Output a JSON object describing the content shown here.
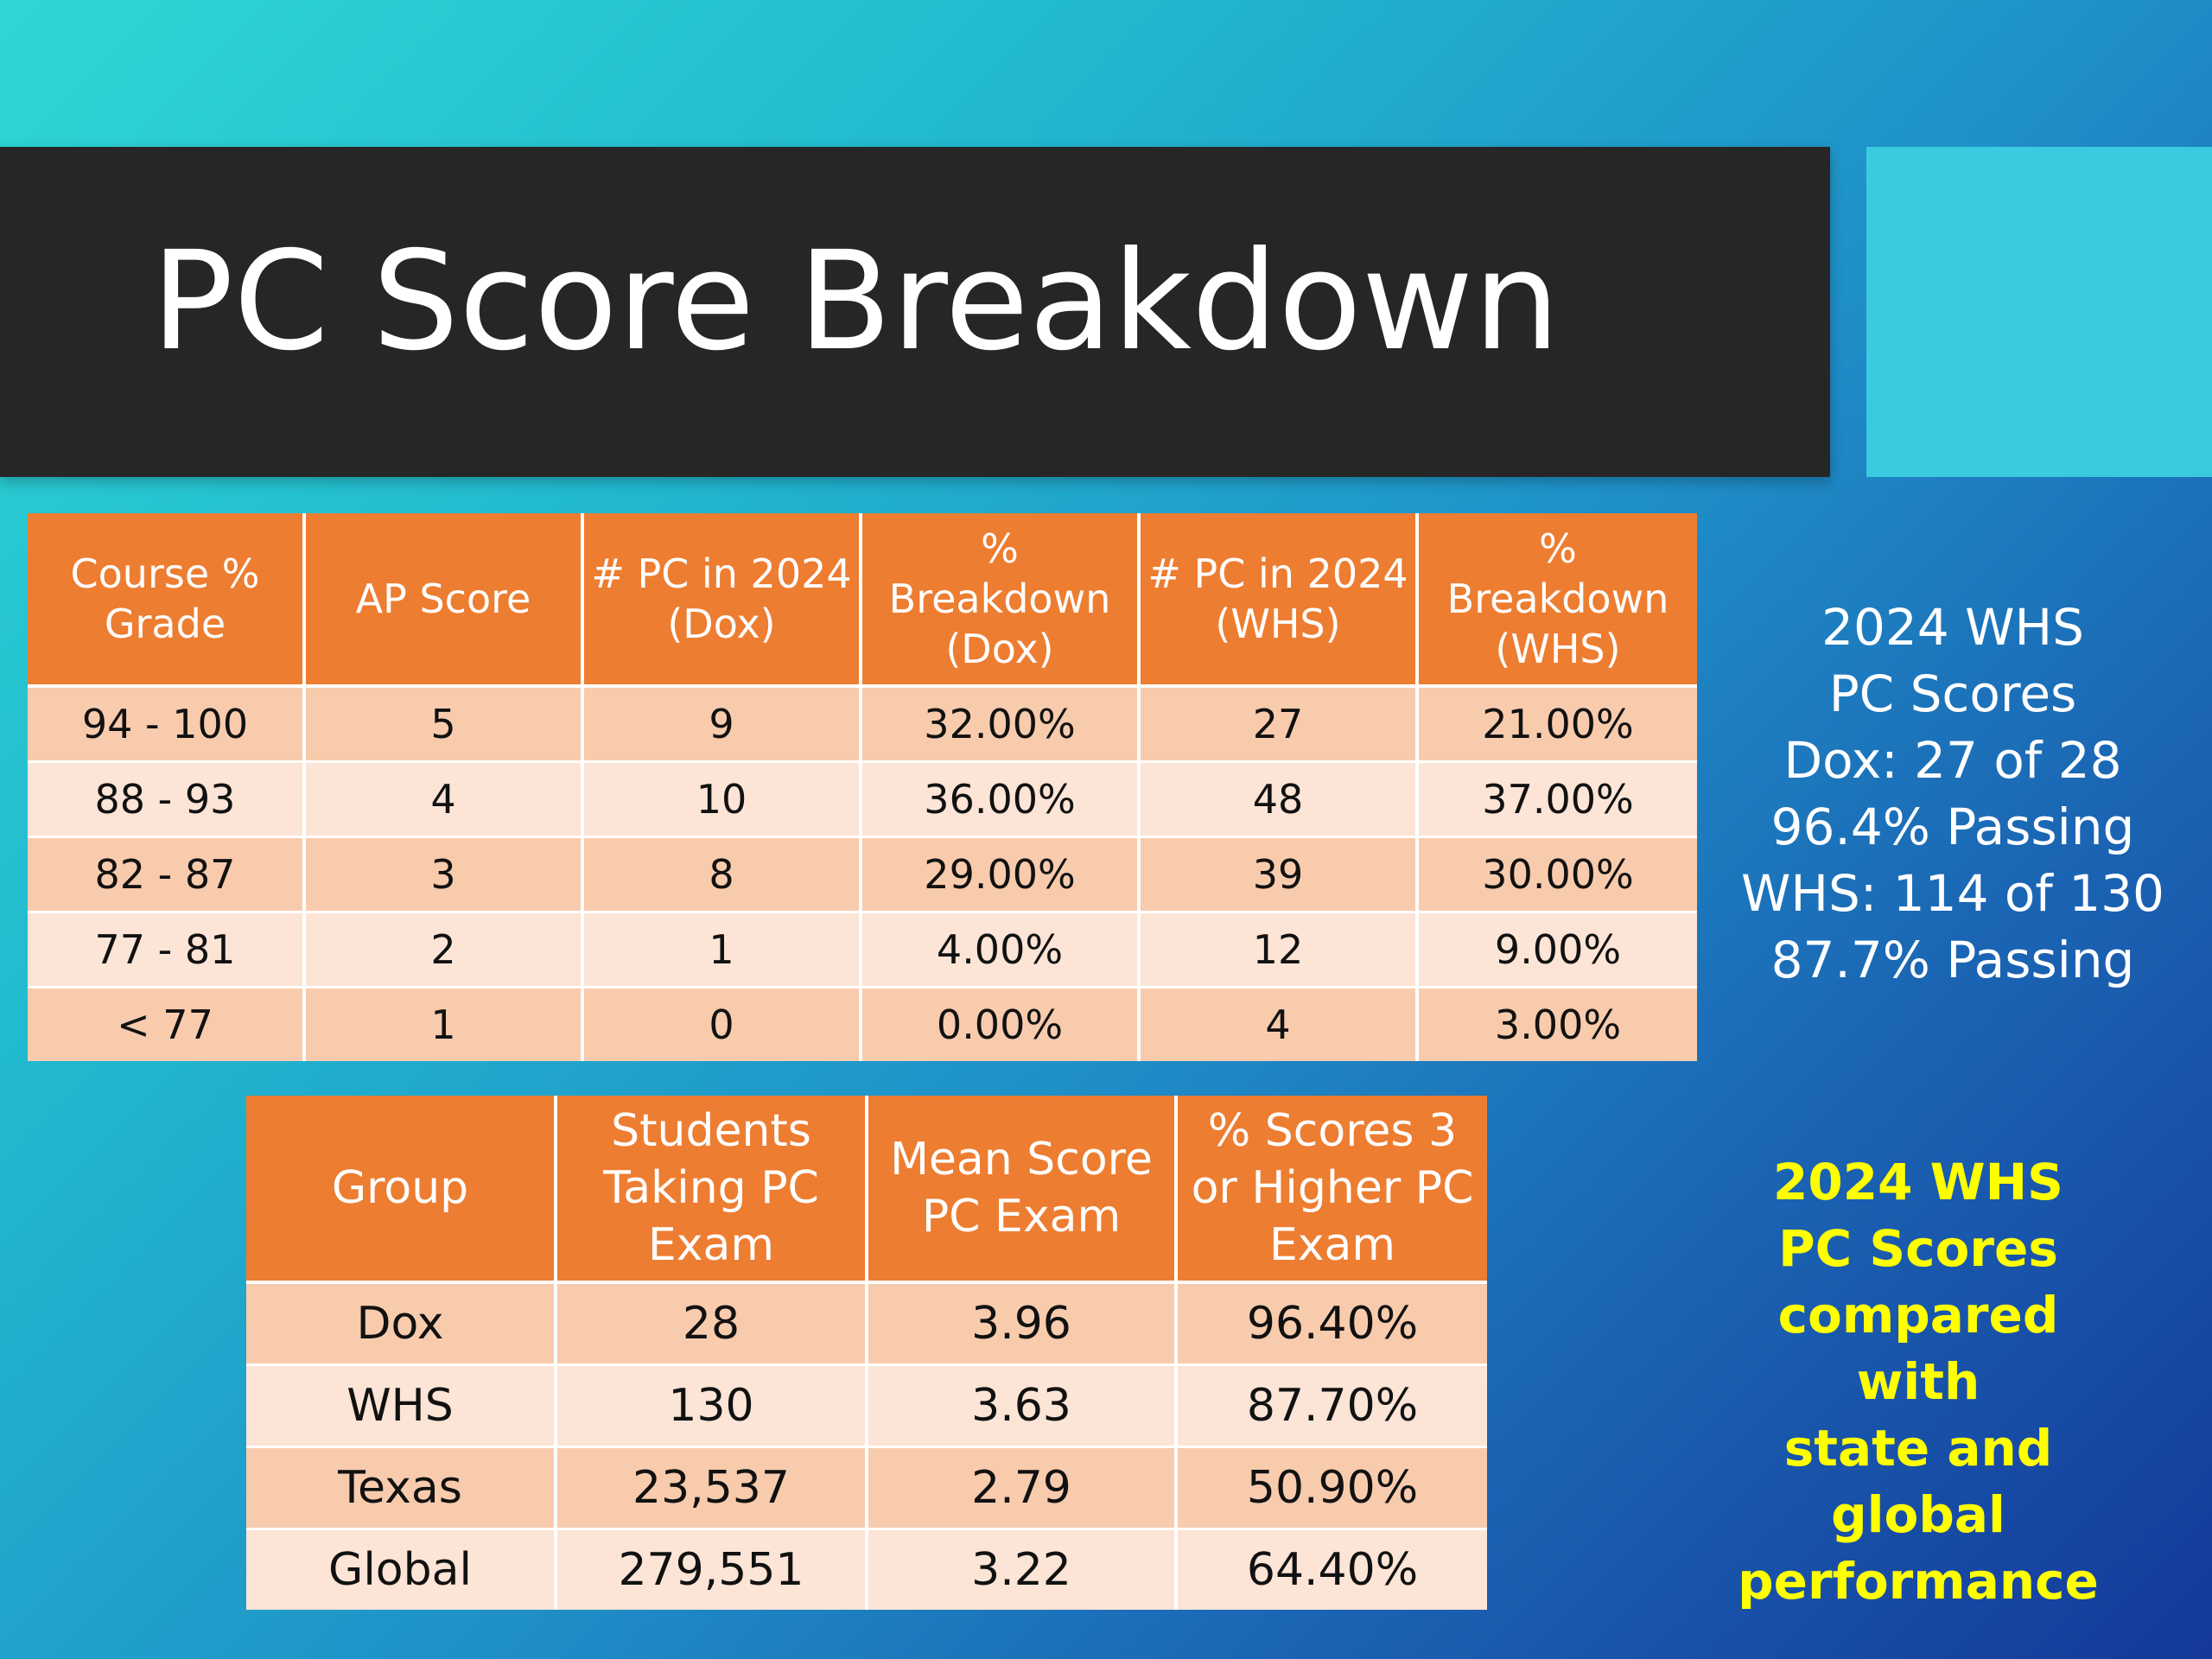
{
  "slide": {
    "title": "PC Score Breakdown"
  },
  "table1": {
    "headers": [
      "Course % Grade",
      "AP Score",
      "# PC in 2024 (Dox)",
      "% Breakdown (Dox)",
      "# PC in 2024 (WHS)",
      "% Breakdown (WHS)"
    ],
    "rows": [
      [
        "94 - 100",
        "5",
        "9",
        "32.00%",
        "27",
        "21.00%"
      ],
      [
        "88 - 93",
        "4",
        "10",
        "36.00%",
        "48",
        "37.00%"
      ],
      [
        "82 - 87",
        "3",
        "8",
        "29.00%",
        "39",
        "30.00%"
      ],
      [
        "77 - 81",
        "2",
        "1",
        "4.00%",
        "12",
        "9.00%"
      ],
      [
        "< 77",
        "1",
        "0",
        "0.00%",
        "4",
        "3.00%"
      ]
    ]
  },
  "table2": {
    "headers": [
      "Group",
      "Students Taking PC Exam",
      "Mean Score PC Exam",
      "% Scores 3 or Higher PC Exam"
    ],
    "rows": [
      [
        "Dox",
        "28",
        "3.96",
        "96.40%"
      ],
      [
        "WHS",
        "130",
        "3.63",
        "87.70%"
      ],
      [
        "Texas",
        "23,537",
        "2.79",
        "50.90%"
      ],
      [
        "Global",
        "279,551",
        "3.22",
        "64.40%"
      ]
    ]
  },
  "summary": {
    "lines": [
      "2024 WHS",
      "PC Scores",
      "Dox: 27 of 28",
      "96.4% Passing",
      "WHS: 114 of 130",
      "87.7% Passing"
    ]
  },
  "comparison_note": {
    "lines": [
      "2024 WHS",
      "PC Scores",
      "compared",
      "with",
      "state and",
      "global",
      "performance"
    ]
  },
  "colors": {
    "header_orange": "#ed7d31",
    "row_dark": "#f8cbad",
    "row_light": "#fce4d6",
    "title_bar": "#262626",
    "accent_block": "#3acbe1",
    "note_yellow": "#ffff00"
  }
}
